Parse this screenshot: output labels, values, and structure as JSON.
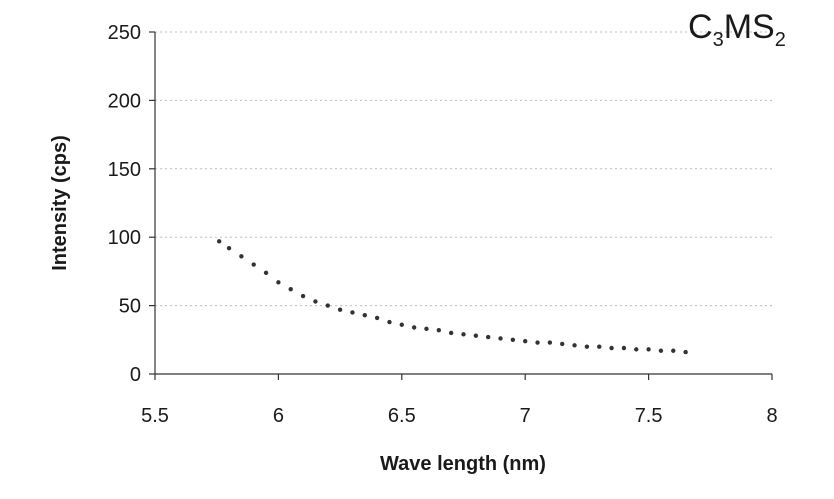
{
  "chart_data": {
    "type": "scatter",
    "title_parts": {
      "c": "C",
      "c_sub": "3",
      "ms": "MS",
      "ms_sub": "2"
    },
    "xlabel": "Wave length (nm)",
    "ylabel": "Intensity (cps)",
    "xlim": [
      5.5,
      8
    ],
    "ylim": [
      0,
      250
    ],
    "xticks": [
      "5.5",
      "6",
      "6.5",
      "7",
      "7.5",
      "8"
    ],
    "yticks": [
      "0",
      "50",
      "100",
      "150",
      "200",
      "250"
    ],
    "grid": "horizontal dotted",
    "marker_color": "#333333",
    "series": [
      {
        "x": [
          5.76,
          5.8,
          5.85,
          5.9,
          5.95,
          6.0,
          6.05,
          6.1,
          6.15,
          6.2,
          6.25,
          6.3,
          6.35,
          6.4,
          6.45,
          6.5,
          6.55,
          6.6,
          6.65,
          6.7,
          6.75,
          6.8,
          6.85,
          6.9,
          6.95,
          7.0,
          7.05,
          7.1,
          7.15,
          7.2,
          7.25,
          7.3,
          7.35,
          7.4,
          7.45,
          7.5,
          7.55,
          7.6,
          7.65
        ],
        "values": [
          97,
          92,
          86,
          80,
          74,
          67,
          62,
          57,
          53,
          50,
          47,
          45,
          43,
          41,
          38,
          36,
          34,
          33,
          32,
          30,
          29,
          28,
          27,
          26,
          25,
          24,
          23,
          23,
          22,
          21,
          20,
          20,
          19,
          19,
          18,
          18,
          17,
          17,
          16
        ]
      }
    ]
  }
}
